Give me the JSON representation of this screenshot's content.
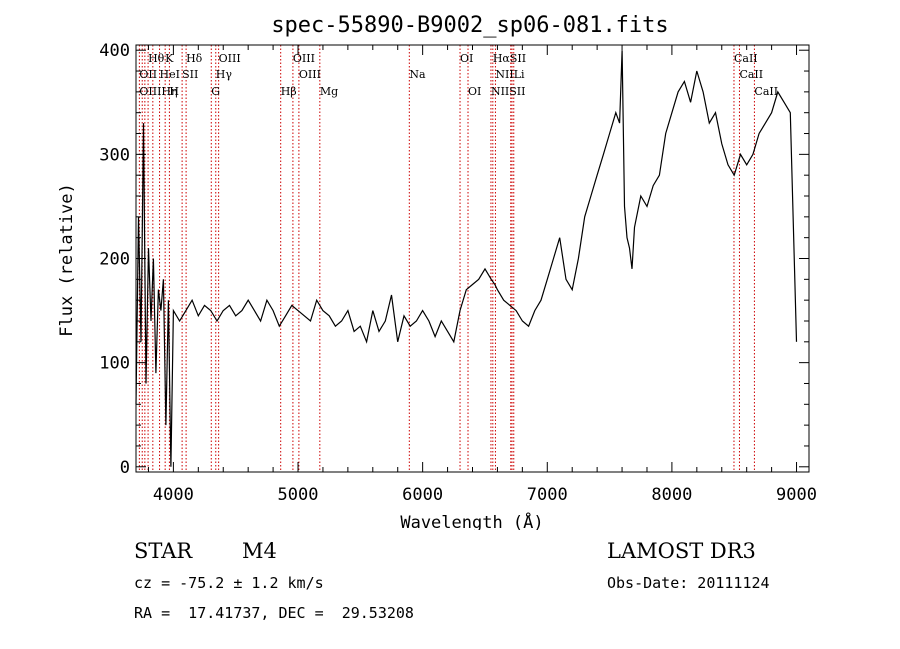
{
  "chart_data": {
    "type": "line",
    "title": "spec-55890-B9002_sp06-081.fits",
    "xlabel": "Wavelength (Å)",
    "ylabel": "Flux (relative)",
    "xlim": [
      3700,
      9100
    ],
    "ylim": [
      -5,
      405
    ],
    "xticks": [
      4000,
      5000,
      6000,
      7000,
      8000,
      9000
    ],
    "yticks": [
      0,
      100,
      200,
      300,
      400
    ],
    "xtick_labels": [
      "4000",
      "5000",
      "6000",
      "7000",
      "8000",
      "9000"
    ],
    "ytick_labels": [
      "0",
      "100",
      "200",
      "300",
      "400"
    ],
    "grid": false,
    "series": [
      {
        "color": "#000000",
        "x": [
          3700,
          3720,
          3740,
          3760,
          3780,
          3800,
          3820,
          3840,
          3860,
          3880,
          3900,
          3920,
          3940,
          3960,
          3980,
          4000,
          4050,
          4100,
          4150,
          4200,
          4250,
          4300,
          4350,
          4400,
          4450,
          4500,
          4550,
          4600,
          4650,
          4700,
          4750,
          4800,
          4850,
          4900,
          4950,
          5000,
          5050,
          5100,
          5150,
          5200,
          5250,
          5300,
          5350,
          5400,
          5450,
          5500,
          5550,
          5600,
          5650,
          5700,
          5750,
          5800,
          5850,
          5900,
          5950,
          6000,
          6050,
          6100,
          6150,
          6200,
          6250,
          6300,
          6350,
          6400,
          6450,
          6500,
          6550,
          6580,
          6600,
          6650,
          6700,
          6750,
          6800,
          6850,
          6900,
          6950,
          7000,
          7050,
          7100,
          7150,
          7200,
          7250,
          7300,
          7350,
          7400,
          7450,
          7500,
          7550,
          7580,
          7600,
          7620,
          7640,
          7660,
          7680,
          7700,
          7750,
          7800,
          7850,
          7900,
          7950,
          8000,
          8050,
          8100,
          8150,
          8200,
          8250,
          8300,
          8350,
          8400,
          8450,
          8500,
          8550,
          8600,
          8650,
          8700,
          8750,
          8800,
          8850,
          8900,
          8950,
          9000
        ],
        "y": [
          60,
          240,
          120,
          330,
          80,
          210,
          140,
          200,
          90,
          170,
          150,
          180,
          40,
          160,
          0,
          150,
          140,
          150,
          160,
          145,
          155,
          150,
          140,
          150,
          155,
          145,
          150,
          160,
          150,
          140,
          160,
          150,
          135,
          145,
          155,
          150,
          145,
          140,
          160,
          150,
          145,
          135,
          140,
          150,
          130,
          135,
          120,
          150,
          130,
          140,
          165,
          120,
          145,
          135,
          140,
          150,
          140,
          125,
          140,
          130,
          120,
          150,
          170,
          175,
          180,
          190,
          180,
          175,
          170,
          160,
          155,
          150,
          140,
          135,
          150,
          160,
          180,
          200,
          220,
          180,
          170,
          200,
          240,
          260,
          280,
          300,
          320,
          340,
          330,
          400,
          250,
          220,
          210,
          190,
          230,
          260,
          250,
          270,
          280,
          320,
          340,
          360,
          370,
          350,
          380,
          360,
          330,
          340,
          310,
          290,
          280,
          300,
          290,
          300,
          320,
          330,
          340,
          360,
          350,
          340,
          120
        ]
      }
    ],
    "spectral_lines": [
      {
        "label": "Hθ",
        "x": 3797,
        "row": 1
      },
      {
        "label": "K",
        "x": 3934,
        "row": 1
      },
      {
        "label": "Hδ",
        "x": 4102,
        "row": 1
      },
      {
        "label": "OIII",
        "x": 4363,
        "row": 1
      },
      {
        "label": "OIII",
        "x": 4959,
        "row": 1
      },
      {
        "label": "OI",
        "x": 6300,
        "row": 1
      },
      {
        "label": "HαSII",
        "x": 6563,
        "row": 1
      },
      {
        "label": "CaII",
        "x": 8498,
        "row": 1
      },
      {
        "label": "OII",
        "x": 3727,
        "row": 2
      },
      {
        "label": "HeI",
        "x": 3889,
        "row": 2
      },
      {
        "label": "SII",
        "x": 4070,
        "row": 2
      },
      {
        "label": "Hγ",
        "x": 4340,
        "row": 2
      },
      {
        "label": "OIII",
        "x": 5007,
        "row": 2
      },
      {
        "label": "Na",
        "x": 5893,
        "row": 2
      },
      {
        "label": "NIILi",
        "x": 6584,
        "row": 2
      },
      {
        "label": "CaII",
        "x": 8542,
        "row": 2
      },
      {
        "label": "OIIIHη",
        "x": 3727,
        "row": 3
      },
      {
        "label": "H",
        "x": 3968,
        "row": 3
      },
      {
        "label": "G",
        "x": 4304,
        "row": 3
      },
      {
        "label": "Hβ",
        "x": 4861,
        "row": 3
      },
      {
        "label": "Mg",
        "x": 5175,
        "row": 3
      },
      {
        "label": "OI",
        "x": 6364,
        "row": 3
      },
      {
        "label": "NIISII",
        "x": 6548,
        "row": 3
      },
      {
        "label": "CaII",
        "x": 8662,
        "row": 3
      }
    ],
    "line_markers_x": [
      3727,
      3750,
      3771,
      3797,
      3835,
      3889,
      3934,
      3968,
      4070,
      4102,
      4304,
      4340,
      4363,
      4861,
      4959,
      5007,
      5175,
      5893,
      6300,
      6364,
      6548,
      6563,
      6584,
      6707,
      6717,
      6731,
      8498,
      8542,
      8662
    ],
    "line_color": "#cc0000"
  },
  "info": {
    "class": "STAR",
    "subclass": "M4",
    "survey": "LAMOST DR3",
    "cz": "cz = -75.2 ± 1.2 km/s",
    "obs_date": "Obs-Date: 20111124",
    "radec": "RA =  17.41737, DEC =  29.53208"
  }
}
